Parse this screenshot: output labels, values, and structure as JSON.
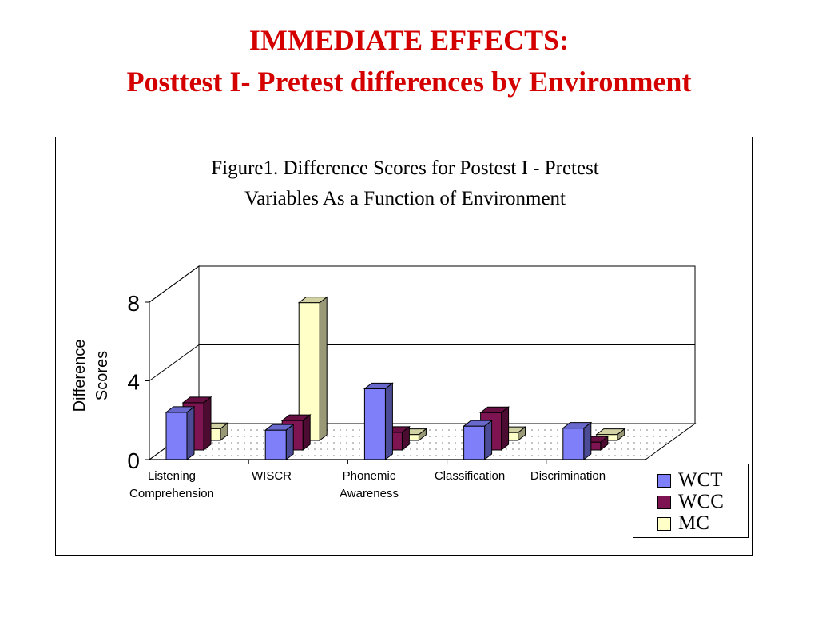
{
  "slide": {
    "title_line1": "IMMEDIATE EFFECTS:",
    "title_line2": "Posttest I- Pretest differences by Environment"
  },
  "chart_data": {
    "type": "bar",
    "title_line1": "Figure1.  Difference Scores for Postest I - Pretest",
    "title_line2": "Variables As a Function of Environment",
    "ylabel_line1": "Difference",
    "ylabel_line2": "Scores",
    "xlabel": "",
    "ylim": [
      0,
      8
    ],
    "yticks": [
      "0",
      "4",
      "8"
    ],
    "categories": [
      [
        "Listening",
        "Comprehension"
      ],
      [
        "WISCR"
      ],
      [
        "Phonemic",
        "Awareness"
      ],
      [
        "Classification"
      ],
      [
        "Discrimination"
      ]
    ],
    "series": [
      {
        "name": "WCT",
        "color": "#7f7ffa",
        "values": [
          2.4,
          1.5,
          3.6,
          1.7,
          1.6
        ]
      },
      {
        "name": "WCC",
        "color": "#7f1452",
        "values": [
          2.4,
          1.5,
          0.9,
          1.9,
          0.4
        ]
      },
      {
        "name": "MC",
        "color": "#ffffc8",
        "values": [
          0.6,
          7.0,
          0.3,
          0.4,
          0.3
        ]
      }
    ],
    "style": "3d-clustered-column",
    "legend_position": "bottom-right",
    "grid": true
  }
}
